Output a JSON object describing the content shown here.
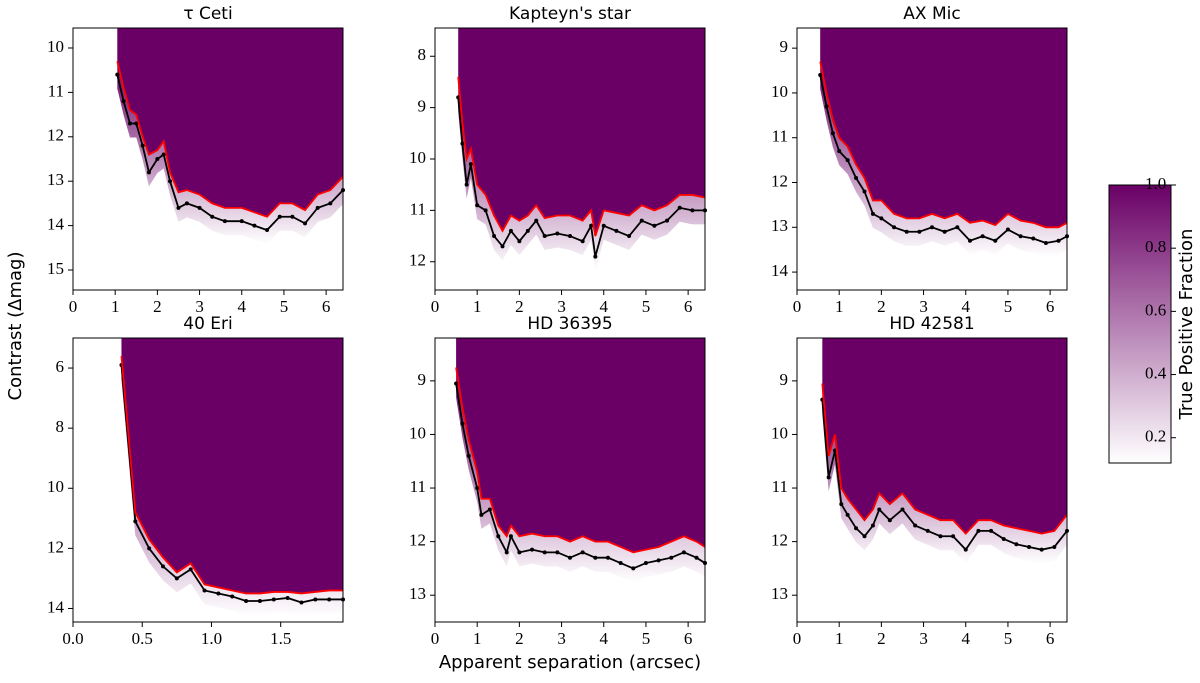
{
  "chart_data": [
    {
      "type": "line",
      "title": "τ Ceti",
      "x": [
        1.05,
        1.2,
        1.35,
        1.5,
        1.65,
        1.8,
        2.0,
        2.15,
        2.3,
        2.5,
        2.7,
        3.0,
        3.3,
        3.6,
        4.0,
        4.3,
        4.6,
        4.9,
        5.2,
        5.5,
        5.8,
        6.1,
        6.4
      ],
      "series": [
        {
          "color": "#000000",
          "markers": true,
          "values": [
            10.6,
            11.2,
            11.7,
            11.7,
            12.2,
            12.8,
            12.5,
            12.4,
            13.0,
            13.6,
            13.5,
            13.6,
            13.8,
            13.9,
            13.9,
            14.0,
            14.1,
            13.8,
            13.8,
            13.95,
            13.6,
            13.5,
            13.2
          ]
        },
        {
          "color": "#ff0000",
          "markers": false,
          "values": [
            10.3,
            10.9,
            11.4,
            11.5,
            12.0,
            12.4,
            12.3,
            12.1,
            12.8,
            13.25,
            13.2,
            13.3,
            13.5,
            13.6,
            13.6,
            13.7,
            13.8,
            13.5,
            13.5,
            13.65,
            13.3,
            13.2,
            12.9
          ]
        }
      ],
      "xlim": [
        0,
        6.4
      ],
      "xticks": [
        0,
        1,
        2,
        3,
        4,
        5,
        6
      ],
      "ylim": [
        9.55,
        15.45
      ],
      "yticks": [
        10,
        11,
        12,
        13,
        14,
        15
      ],
      "y_inverted": true,
      "fill_color": "#6a0066"
    },
    {
      "type": "line",
      "title": "Kapteyn's star",
      "x": [
        0.55,
        0.65,
        0.75,
        0.85,
        1.0,
        1.2,
        1.4,
        1.6,
        1.8,
        2.0,
        2.2,
        2.4,
        2.6,
        2.9,
        3.2,
        3.5,
        3.7,
        3.8,
        4.0,
        4.3,
        4.6,
        4.9,
        5.2,
        5.5,
        5.8,
        6.1,
        6.4
      ],
      "series": [
        {
          "color": "#000000",
          "markers": true,
          "values": [
            8.8,
            9.7,
            10.5,
            10.1,
            10.9,
            11.0,
            11.5,
            11.7,
            11.4,
            11.6,
            11.4,
            11.2,
            11.5,
            11.45,
            11.5,
            11.6,
            11.3,
            11.9,
            11.3,
            11.4,
            11.5,
            11.2,
            11.3,
            11.2,
            10.95,
            11.0,
            11.0
          ]
        },
        {
          "color": "#ff0000",
          "markers": false,
          "values": [
            8.4,
            9.3,
            10.0,
            9.8,
            10.5,
            10.7,
            11.1,
            11.4,
            11.1,
            11.2,
            11.1,
            10.9,
            11.15,
            11.1,
            11.1,
            11.2,
            11.0,
            11.5,
            11.0,
            11.05,
            11.1,
            10.9,
            11.0,
            10.9,
            10.7,
            10.7,
            10.75
          ]
        }
      ],
      "xlim": [
        0,
        6.4
      ],
      "xticks": [
        0,
        1,
        2,
        3,
        4,
        5,
        6
      ],
      "ylim": [
        7.45,
        12.55
      ],
      "yticks": [
        8,
        9,
        10,
        11,
        12
      ],
      "y_inverted": true,
      "fill_color": "#6a0066"
    },
    {
      "type": "line",
      "title": "AX Mic",
      "x": [
        0.55,
        0.7,
        0.85,
        1.0,
        1.2,
        1.4,
        1.6,
        1.8,
        2.0,
        2.3,
        2.6,
        2.9,
        3.2,
        3.5,
        3.8,
        4.1,
        4.4,
        4.7,
        5.0,
        5.3,
        5.6,
        5.9,
        6.2,
        6.4
      ],
      "series": [
        {
          "color": "#000000",
          "markers": true,
          "values": [
            9.6,
            10.3,
            10.9,
            11.3,
            11.5,
            11.9,
            12.2,
            12.7,
            12.8,
            13.0,
            13.1,
            13.1,
            13.0,
            13.1,
            13.0,
            13.3,
            13.2,
            13.3,
            13.05,
            13.2,
            13.25,
            13.35,
            13.3,
            13.2
          ]
        },
        {
          "color": "#ff0000",
          "markers": false,
          "values": [
            9.3,
            10.0,
            10.6,
            11.0,
            11.2,
            11.6,
            11.9,
            12.4,
            12.4,
            12.7,
            12.8,
            12.8,
            12.7,
            12.8,
            12.7,
            12.9,
            12.85,
            12.95,
            12.7,
            12.85,
            12.9,
            13.0,
            13.0,
            12.9
          ]
        }
      ],
      "xlim": [
        0,
        6.4
      ],
      "xticks": [
        0,
        1,
        2,
        3,
        4,
        5,
        6
      ],
      "ylim": [
        8.55,
        14.4
      ],
      "yticks": [
        9,
        10,
        11,
        12,
        13,
        14
      ],
      "y_inverted": true,
      "fill_color": "#6a0066"
    },
    {
      "type": "line",
      "title": "40 Eri",
      "x": [
        0.35,
        0.45,
        0.55,
        0.65,
        0.75,
        0.85,
        0.95,
        1.05,
        1.15,
        1.25,
        1.35,
        1.45,
        1.55,
        1.65,
        1.75,
        1.85,
        1.95
      ],
      "series": [
        {
          "color": "#000000",
          "markers": true,
          "values": [
            5.9,
            11.1,
            12.0,
            12.6,
            13.0,
            12.7,
            13.4,
            13.5,
            13.6,
            13.75,
            13.75,
            13.7,
            13.65,
            13.8,
            13.7,
            13.7,
            13.7
          ]
        },
        {
          "color": "#ff0000",
          "markers": false,
          "values": [
            5.6,
            10.8,
            11.7,
            12.3,
            12.8,
            12.5,
            13.2,
            13.3,
            13.4,
            13.5,
            13.5,
            13.45,
            13.45,
            13.5,
            13.45,
            13.4,
            13.4
          ]
        }
      ],
      "xlim": [
        0,
        1.95
      ],
      "xticks": [
        {
          "value": 0,
          "label": "0.0"
        },
        0.5,
        {
          "value": 1,
          "label": "1.0"
        },
        1.5
      ],
      "ylim": [
        5.0,
        14.45
      ],
      "yticks": [
        6,
        8,
        10,
        12,
        14
      ],
      "y_inverted": true,
      "fill_color": "#6a0066"
    },
    {
      "type": "line",
      "title": "HD 36395",
      "x": [
        0.5,
        0.65,
        0.8,
        1.0,
        1.1,
        1.3,
        1.5,
        1.7,
        1.8,
        2.0,
        2.3,
        2.6,
        2.9,
        3.2,
        3.5,
        3.8,
        4.1,
        4.4,
        4.7,
        5.0,
        5.3,
        5.6,
        5.9,
        6.2,
        6.4
      ],
      "series": [
        {
          "color": "#000000",
          "markers": true,
          "values": [
            9.05,
            9.8,
            10.4,
            11.0,
            11.5,
            11.4,
            11.9,
            12.2,
            11.9,
            12.2,
            12.15,
            12.2,
            12.2,
            12.3,
            12.2,
            12.3,
            12.3,
            12.4,
            12.5,
            12.4,
            12.35,
            12.3,
            12.2,
            12.3,
            12.4
          ]
        },
        {
          "color": "#ff0000",
          "markers": false,
          "values": [
            8.75,
            9.5,
            10.1,
            10.7,
            11.2,
            11.2,
            11.7,
            11.9,
            11.7,
            11.9,
            11.85,
            11.9,
            11.9,
            12.0,
            11.9,
            12.0,
            12.0,
            12.1,
            12.2,
            12.15,
            12.1,
            12.0,
            11.9,
            12.0,
            12.1
          ]
        }
      ],
      "xlim": [
        0,
        6.4
      ],
      "xticks": [
        0,
        1,
        2,
        3,
        4,
        5,
        6
      ],
      "ylim": [
        8.2,
        13.5
      ],
      "yticks": [
        9,
        10,
        11,
        12,
        13
      ],
      "y_inverted": true,
      "fill_color": "#6a0066"
    },
    {
      "type": "line",
      "title": "HD 42581",
      "x": [
        0.6,
        0.75,
        0.9,
        1.05,
        1.2,
        1.4,
        1.6,
        1.8,
        1.95,
        2.2,
        2.5,
        2.8,
        3.1,
        3.4,
        3.7,
        4.0,
        4.3,
        4.6,
        4.9,
        5.2,
        5.5,
        5.8,
        6.1,
        6.4
      ],
      "series": [
        {
          "color": "#000000",
          "markers": true,
          "values": [
            9.35,
            10.8,
            10.3,
            11.3,
            11.5,
            11.75,
            11.9,
            11.7,
            11.4,
            11.6,
            11.4,
            11.7,
            11.8,
            11.9,
            11.9,
            12.15,
            11.8,
            11.8,
            11.95,
            12.05,
            12.1,
            12.15,
            12.1,
            11.8
          ]
        },
        {
          "color": "#ff0000",
          "markers": false,
          "values": [
            9.05,
            10.4,
            10.0,
            11.0,
            11.2,
            11.4,
            11.6,
            11.4,
            11.1,
            11.3,
            11.1,
            11.4,
            11.5,
            11.6,
            11.6,
            11.85,
            11.6,
            11.6,
            11.7,
            11.75,
            11.8,
            11.85,
            11.8,
            11.5
          ]
        }
      ],
      "xlim": [
        0,
        6.4
      ],
      "xticks": [
        0,
        1,
        2,
        3,
        4,
        5,
        6
      ],
      "ylim": [
        8.2,
        13.5
      ],
      "yticks": [
        9,
        10,
        11,
        12,
        13
      ],
      "y_inverted": true,
      "fill_color": "#6a0066"
    }
  ],
  "xlabel": "Apparent separation (arcsec)",
  "ylabel": "Contrast (Δmag)",
  "colorbar": {
    "label": "True Positive Fraction",
    "lim": [
      0.12,
      1.0
    ],
    "ticks": [
      0.2,
      0.4,
      0.6,
      0.8,
      {
        "value": 1.0,
        "label": "1.0"
      }
    ],
    "colors": [
      "#ffffff",
      "#6a0066"
    ]
  }
}
